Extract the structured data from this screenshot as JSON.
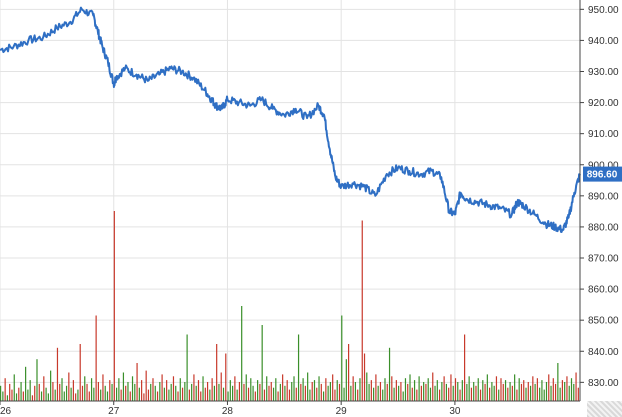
{
  "chart_data": {
    "type": "line",
    "title": "",
    "xlabel": "",
    "ylabel": "",
    "x_ticks": [
      "26",
      "27",
      "28",
      "29",
      "30"
    ],
    "y_ticks": [
      "830.00",
      "840.00",
      "850.00",
      "860.00",
      "870.00",
      "880.00",
      "890.00",
      "900.00",
      "910.00",
      "920.00",
      "930.00",
      "940.00",
      "950.00"
    ],
    "x_range": [
      26.0,
      31.1
    ],
    "ylim": [
      824,
      953
    ],
    "grid": true,
    "last_value_label": "896.60",
    "colors": {
      "price_line": "#2f6fc4",
      "volume_up": "#3a8f2a",
      "volume_down": "#c8392b",
      "grid": "#e3e3e3",
      "axis": "#444444",
      "last_badge": "#2f6fc4"
    },
    "series": [
      {
        "type": "line",
        "x": [
          26.0,
          26.12,
          26.25,
          26.38,
          26.5,
          26.62,
          26.72,
          26.82,
          26.86,
          26.9,
          26.95,
          27.0,
          27.02,
          27.1,
          27.2,
          27.3,
          27.4,
          27.5,
          27.6,
          27.7,
          27.8,
          27.86,
          27.9,
          27.95,
          28.0,
          28.1,
          28.2,
          28.3,
          28.4,
          28.5,
          28.6,
          28.7,
          28.8,
          28.85,
          28.9,
          28.95,
          29.0,
          29.1,
          29.2,
          29.3,
          29.4,
          29.5,
          29.6,
          29.7,
          29.8,
          29.88,
          29.95,
          30.0,
          30.05,
          30.1,
          30.2,
          30.3,
          30.4,
          30.5,
          30.55,
          30.6,
          30.7,
          30.8,
          30.88,
          30.95,
          31.0,
          31.05,
          31.1
        ],
        "y": [
          937,
          938,
          940,
          941,
          944,
          946,
          950,
          948,
          943,
          938,
          933,
          926,
          928,
          931,
          929,
          927,
          929,
          931,
          930,
          928,
          924,
          921,
          919,
          918,
          921,
          920,
          919,
          921,
          918,
          916,
          918,
          915,
          919,
          916,
          905,
          896,
          893,
          894,
          893,
          890,
          897,
          899,
          898,
          897,
          898,
          896,
          885,
          884,
          891,
          889,
          888,
          887,
          886,
          884,
          888,
          887,
          884,
          881,
          880,
          879,
          883,
          891,
          897
        ]
      },
      {
        "type": "volume",
        "volume_ymax": 100,
        "x_start": 26.0,
        "x_step": 0.02,
        "values": [
          8,
          5,
          12,
          3,
          9,
          6,
          14,
          4,
          7,
          10,
          5,
          18,
          6,
          11,
          3,
          8,
          22,
          9,
          5,
          13,
          7,
          4,
          16,
          10,
          6,
          28,
          9,
          12,
          5,
          8,
          15,
          7,
          11,
          4,
          6,
          30,
          8,
          13,
          9,
          5,
          12,
          7,
          45,
          10,
          6,
          14,
          8,
          5,
          11,
          9,
          100,
          7,
          12,
          6,
          15,
          8,
          10,
          5,
          13,
          9,
          20,
          7,
          11,
          4,
          16,
          6,
          9,
          12,
          8,
          5,
          10,
          14,
          7,
          11,
          6,
          9,
          13,
          8,
          5,
          12,
          7,
          10,
          35,
          6,
          9,
          14,
          8,
          11,
          5,
          13,
          7,
          10,
          6,
          12,
          8,
          30,
          9,
          15,
          7,
          25,
          5,
          11,
          8,
          13,
          6,
          10,
          50,
          9,
          14,
          7,
          12,
          8,
          5,
          11,
          9,
          40,
          6,
          13,
          8,
          10,
          7,
          12,
          5,
          9,
          14,
          8,
          11,
          6,
          10,
          13,
          7,
          35,
          9,
          12,
          8,
          15,
          6,
          10,
          11,
          7,
          13,
          9,
          5,
          12,
          8,
          10,
          14,
          6,
          11,
          9,
          45,
          7,
          22,
          30,
          8,
          13,
          10,
          6,
          12,
          95,
          25,
          15,
          9,
          11,
          7,
          14,
          8,
          10,
          6,
          12,
          9,
          28,
          13,
          7,
          11,
          8,
          10,
          5,
          12,
          9,
          14,
          7,
          11,
          6,
          13,
          8,
          10,
          9,
          12,
          7,
          15,
          8,
          11,
          6,
          10,
          13,
          9,
          7,
          14,
          8,
          12,
          10,
          6,
          11,
          35,
          9,
          13,
          7,
          10,
          8,
          12,
          6,
          11,
          9,
          14,
          7,
          10,
          8,
          13,
          6,
          12,
          9,
          11,
          7,
          10,
          8,
          14,
          6,
          12,
          9,
          11,
          7,
          10,
          8,
          13,
          9,
          12,
          7,
          11,
          6,
          10,
          14,
          8,
          12,
          9,
          20,
          7,
          11,
          10,
          13,
          8,
          12,
          9,
          15,
          7,
          11,
          10,
          18,
          65,
          12
        ],
        "up_down": "ggrgrrggrgrgggrrgrgrgggrgrrgggrgrrgrrgrrggrrgrggrgrggrgrgrggrgrrrrgrgrgrgrggrgrgrggrgrgrrgrrgrgrgrgrgggrgrgrgrggrgrgrgrrggrgrgrrggrgrgrggrgrgrgrggrrgrgggrgrgrgrrggrgrgrggrgrgrgrggrgrgrgrgrggrggrgrgrrgrgrgrggrgrgrgrgrggrgrrgrgrgrgrrgrgrgrgg"
      }
    ]
  }
}
